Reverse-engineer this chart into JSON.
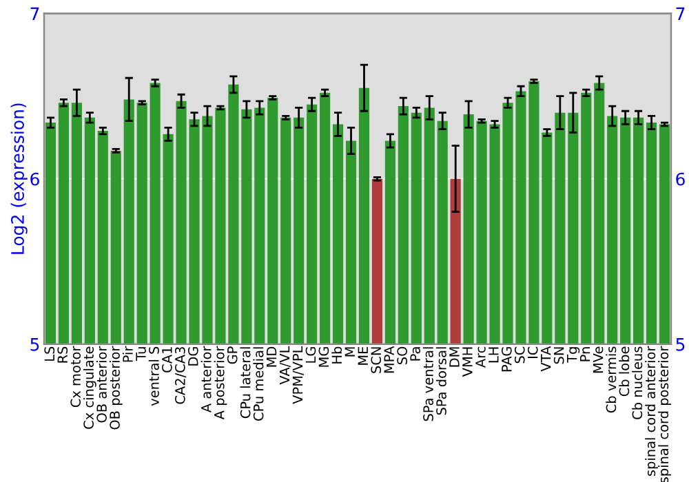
{
  "chart_data": {
    "type": "bar",
    "ylabel": "Log2 (expression)",
    "categories": [
      "LS",
      "RS",
      "Cx motor",
      "Cx cingulate",
      "OB anterior",
      "OB posterior",
      "Pir",
      "Tu",
      "ventral S",
      "CA1",
      "CA2/CA3",
      "DG",
      "A anterior",
      "A posterior",
      "GP",
      "CPu lateral",
      "CPu medial",
      "MD",
      "VA/VL",
      "VPM/VPL",
      "LG",
      "MG",
      "Hb",
      "M",
      "ME",
      "SCN",
      "MPA",
      "SO",
      "Pa",
      "SPa ventral",
      "SPa dorsal",
      "DM",
      "VMH",
      "Arc",
      "LH",
      "PAG",
      "SC",
      "IC",
      "VTA",
      "SN",
      "Tg",
      "Pn",
      "MVe",
      "Cb vermis",
      "Cb lobe",
      "Cb nucleus",
      "spinal cord anterior",
      "spinal cord posterior"
    ],
    "values": [
      6.34,
      6.46,
      6.46,
      6.37,
      6.29,
      6.17,
      6.48,
      6.46,
      6.58,
      6.27,
      6.47,
      6.36,
      6.38,
      6.43,
      6.57,
      6.42,
      6.43,
      6.49,
      6.37,
      6.37,
      6.45,
      6.52,
      6.33,
      6.23,
      6.55,
      6.0,
      6.23,
      6.44,
      6.4,
      6.43,
      6.35,
      6.0,
      6.39,
      6.35,
      6.33,
      6.46,
      6.53,
      6.59,
      6.28,
      6.4,
      6.4,
      6.52,
      6.58,
      6.38,
      6.37,
      6.37,
      6.34,
      6.33
    ],
    "errors": [
      0.03,
      0.02,
      0.08,
      0.03,
      0.02,
      0.01,
      0.13,
      0.01,
      0.02,
      0.04,
      0.04,
      0.04,
      0.06,
      0.01,
      0.05,
      0.05,
      0.04,
      0.01,
      0.01,
      0.06,
      0.04,
      0.02,
      0.07,
      0.08,
      0.14,
      0.01,
      0.04,
      0.05,
      0.03,
      0.07,
      0.05,
      0.2,
      0.08,
      0.01,
      0.02,
      0.03,
      0.03,
      0.01,
      0.02,
      0.1,
      0.12,
      0.02,
      0.04,
      0.06,
      0.04,
      0.04,
      0.04,
      0.01
    ],
    "colors": [
      "#2f9b2f",
      "#2f9b2f",
      "#2f9b2f",
      "#2f9b2f",
      "#2f9b2f",
      "#2f9b2f",
      "#2f9b2f",
      "#2f9b2f",
      "#2f9b2f",
      "#2f9b2f",
      "#2f9b2f",
      "#2f9b2f",
      "#2f9b2f",
      "#2f9b2f",
      "#2f9b2f",
      "#2f9b2f",
      "#2f9b2f",
      "#2f9b2f",
      "#2f9b2f",
      "#2f9b2f",
      "#2f9b2f",
      "#2f9b2f",
      "#2f9b2f",
      "#2f9b2f",
      "#2f9b2f",
      "#b03c3c",
      "#2f9b2f",
      "#2f9b2f",
      "#2f9b2f",
      "#2f9b2f",
      "#2f9b2f",
      "#b03c3c",
      "#2f9b2f",
      "#2f9b2f",
      "#2f9b2f",
      "#2f9b2f",
      "#2f9b2f",
      "#2f9b2f",
      "#2f9b2f",
      "#2f9b2f",
      "#2f9b2f",
      "#2f9b2f",
      "#2f9b2f",
      "#2f9b2f",
      "#2f9b2f",
      "#2f9b2f",
      "#2f9b2f",
      "#2f9b2f"
    ],
    "ylim": [
      5,
      7
    ],
    "yticks": [
      5,
      6,
      7
    ],
    "y2lim": [
      5,
      7
    ],
    "y2ticks": [
      5,
      6,
      7
    ],
    "grid": "y"
  }
}
